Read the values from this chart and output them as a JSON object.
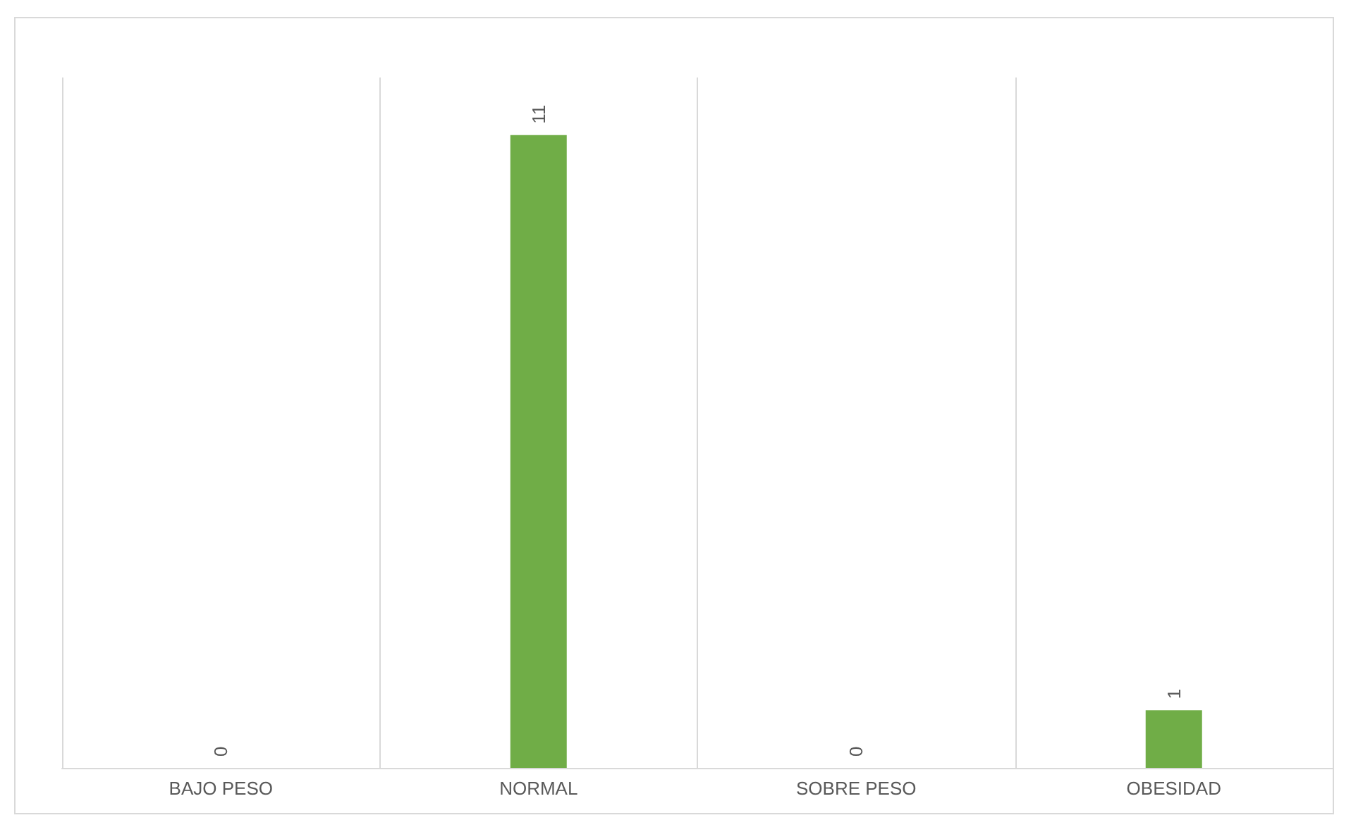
{
  "chart_data": {
    "type": "bar",
    "categories": [
      "BAJO PESO",
      "NORMAL",
      "SOBRE PESO",
      "OBESIDAD"
    ],
    "values": [
      0,
      11,
      0,
      1
    ],
    "color": "#70ad47",
    "data_labels": true,
    "grid": "x",
    "tick_labels": "x"
  }
}
